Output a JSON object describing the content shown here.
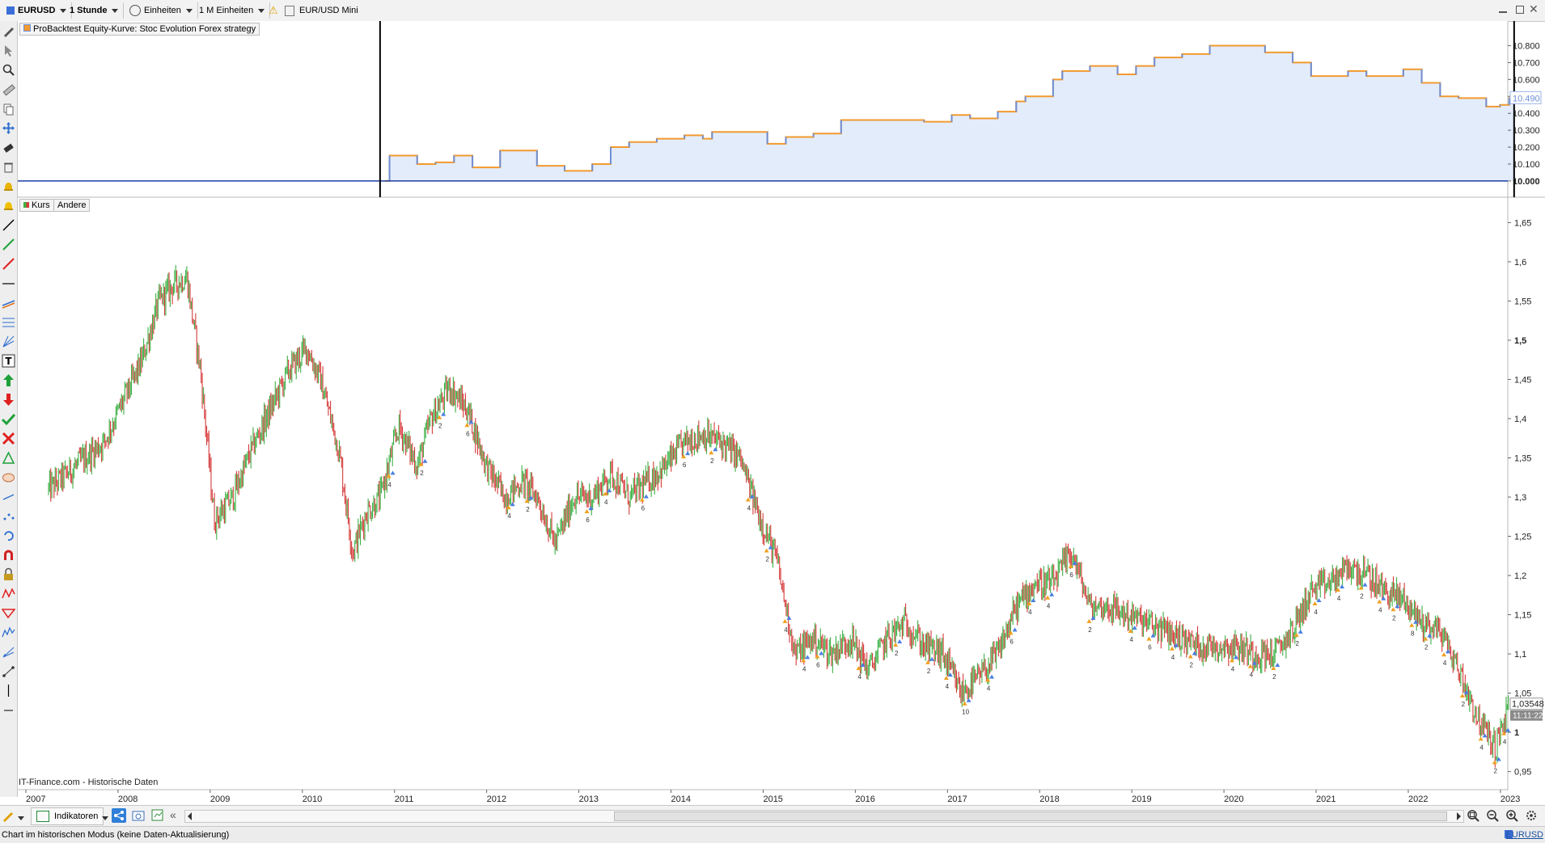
{
  "toolbar": {
    "symbol": "EURUSD",
    "timeframe": "1 Stunde",
    "units_label": "Einheiten",
    "units_count": "1 M Einheiten",
    "instrument_name": "EUR/USD Mini"
  },
  "equity_panel": {
    "label": "ProBacktest Equity-Kurve: Stoc Evolution Forex strategy",
    "y_ticks": [
      "10.800",
      "10.700",
      "10.600",
      "10.500",
      "10.400",
      "10.300",
      "10.200",
      "10.100",
      "10.000"
    ],
    "current_value": "10.490",
    "colors": {
      "line": "#f29a2e",
      "fill": "#e3ecfb",
      "step": "#6e8fd8",
      "baseline": "#1a3fa8"
    }
  },
  "price_panel": {
    "tabs": [
      "Kurs",
      "Andere"
    ],
    "y_ticks": [
      "1,65",
      "1,6",
      "1,55",
      "1,5",
      "1,45",
      "1,4",
      "1,35",
      "1,3",
      "1,25",
      "1,2",
      "1,15",
      "1,1",
      "1,05",
      "1",
      "0,95"
    ],
    "current_price": "1,03548",
    "current_time": "11:11:22",
    "source_text": "IT-Finance.com - Historische Daten",
    "colors": {
      "up": "#3cb043",
      "down": "#d63a3a",
      "buy": "#f0a020",
      "sell": "#4a7fe0"
    }
  },
  "x_axis": {
    "years": [
      "2007",
      "2008",
      "2009",
      "2010",
      "2011",
      "2012",
      "2013",
      "2014",
      "2015",
      "2016",
      "2017",
      "2018",
      "2019",
      "2020",
      "2021",
      "2022",
      "2023"
    ]
  },
  "bottombar": {
    "indicators_label": "Indikatoren"
  },
  "statusbar": {
    "message": "Chart im historischen Modus (keine Daten-Aktualisierung)",
    "symbol": "EURUSD"
  },
  "chart_data": [
    {
      "type": "line",
      "title": "ProBacktest Equity-Kurve: Stoc Evolution Forex strategy",
      "x": [
        2010.65,
        2010.7,
        2011.0,
        2011.2,
        2011.4,
        2011.6,
        2011.9,
        2012.3,
        2012.6,
        2012.9,
        2013.1,
        2013.3,
        2013.6,
        2013.9,
        2014.1,
        2014.2,
        2014.6,
        2014.8,
        2015.0,
        2015.3,
        2015.6,
        2015.9,
        2016.2,
        2016.5,
        2016.8,
        2017.0,
        2017.3,
        2017.5,
        2017.6,
        2017.9,
        2018.0,
        2018.3,
        2018.6,
        2018.8,
        2019.0,
        2019.3,
        2019.6,
        2019.9,
        2020.2,
        2020.5,
        2020.7,
        2020.9,
        2021.1,
        2021.3,
        2021.5,
        2021.7,
        2021.9,
        2022.1,
        2022.3,
        2022.5,
        2022.6,
        2022.75,
        2022.85
      ],
      "y": [
        10000,
        10150,
        10100,
        10110,
        10150,
        10080,
        10180,
        10090,
        10060,
        10100,
        10200,
        10230,
        10250,
        10270,
        10250,
        10290,
        10290,
        10220,
        10260,
        10280,
        10360,
        10360,
        10360,
        10350,
        10390,
        10370,
        10410,
        10470,
        10500,
        10600,
        10650,
        10680,
        10630,
        10680,
        10730,
        10750,
        10800,
        10800,
        10760,
        10700,
        10620,
        10620,
        10650,
        10620,
        10620,
        10660,
        10580,
        10500,
        10490,
        10490,
        10440,
        10450,
        10490
      ],
      "xlabel": "",
      "ylabel": "",
      "ylim": [
        9990,
        10850
      ],
      "baseline": 10000,
      "grid": false
    },
    {
      "type": "candlestick",
      "title": "EUR/USD Mini",
      "x": [
        2007.0,
        2007.2,
        2007.4,
        2007.6,
        2007.8,
        2008.0,
        2008.2,
        2008.35,
        2008.5,
        2008.65,
        2008.8,
        2009.0,
        2009.2,
        2009.4,
        2009.6,
        2009.8,
        2009.95,
        2010.15,
        2010.3,
        2010.45,
        2010.6,
        2010.8,
        2011.0,
        2011.15,
        2011.35,
        2011.55,
        2011.75,
        2011.95,
        2012.15,
        2012.3,
        2012.5,
        2012.7,
        2012.9,
        2013.1,
        2013.3,
        2013.5,
        2013.7,
        2013.9,
        2014.1,
        2014.3,
        2014.5,
        2014.7,
        2014.9,
        2015.1,
        2015.3,
        2015.5,
        2015.7,
        2015.9,
        2016.1,
        2016.3,
        2016.5,
        2016.7,
        2016.9,
        2017.1,
        2017.3,
        2017.5,
        2017.7,
        2017.9,
        2018.1,
        2018.3,
        2018.5,
        2018.7,
        2018.9,
        2019.1,
        2019.3,
        2019.5,
        2019.7,
        2019.9,
        2020.1,
        2020.3,
        2020.5,
        2020.7,
        2020.9,
        2021.1,
        2021.3,
        2021.5,
        2021.7,
        2021.9,
        2022.1,
        2022.3,
        2022.5,
        2022.7,
        2022.85
      ],
      "y": [
        1.31,
        1.33,
        1.35,
        1.37,
        1.42,
        1.47,
        1.55,
        1.57,
        1.58,
        1.46,
        1.27,
        1.3,
        1.36,
        1.41,
        1.46,
        1.49,
        1.45,
        1.36,
        1.23,
        1.28,
        1.3,
        1.39,
        1.34,
        1.4,
        1.44,
        1.41,
        1.34,
        1.3,
        1.32,
        1.3,
        1.24,
        1.3,
        1.3,
        1.33,
        1.3,
        1.32,
        1.34,
        1.37,
        1.38,
        1.37,
        1.35,
        1.28,
        1.22,
        1.1,
        1.12,
        1.1,
        1.12,
        1.08,
        1.12,
        1.14,
        1.11,
        1.1,
        1.05,
        1.07,
        1.1,
        1.16,
        1.19,
        1.19,
        1.23,
        1.16,
        1.16,
        1.15,
        1.14,
        1.13,
        1.12,
        1.11,
        1.11,
        1.11,
        1.1,
        1.1,
        1.13,
        1.18,
        1.19,
        1.21,
        1.2,
        1.18,
        1.17,
        1.14,
        1.13,
        1.08,
        1.02,
        0.98,
        1.03548
      ],
      "ylim": [
        0.93,
        1.67
      ],
      "xlim": [
        2007.0,
        2023.15
      ],
      "grid": false
    }
  ]
}
